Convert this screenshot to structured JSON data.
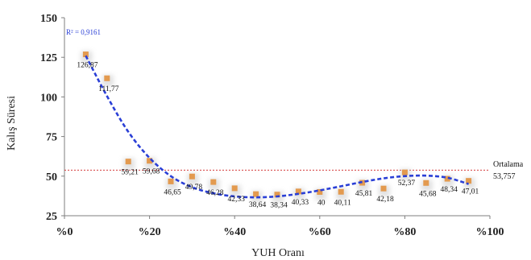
{
  "chart_data": {
    "type": "scatter",
    "xlabel": "YUH Oranı",
    "ylabel": "Kalış Süresi",
    "xlim": [
      0,
      100
    ],
    "ylim": [
      25,
      150
    ],
    "x_ticks": [
      "%0",
      "%20",
      "%40",
      "%60",
      "%80",
      "%100"
    ],
    "x_tick_values": [
      0,
      20,
      40,
      60,
      80,
      100
    ],
    "y_ticks": [
      "25",
      "50",
      "75",
      "100",
      "125",
      "150"
    ],
    "y_tick_values": [
      25,
      50,
      75,
      100,
      125,
      150
    ],
    "grid": false,
    "series": [
      {
        "x": [
          5,
          10,
          15,
          20,
          25,
          30,
          35,
          40,
          45,
          50,
          55,
          60,
          65,
          70,
          75,
          80,
          85,
          90,
          95
        ],
        "y": [
          126.87,
          111.77,
          59.21,
          59.68,
          46.65,
          49.78,
          46.28,
          42.33,
          38.64,
          38.34,
          40.33,
          40,
          40.11,
          45.81,
          42.18,
          52.37,
          45.68,
          48.34,
          47.01
        ],
        "labels": [
          "126,87",
          "111,77",
          "59,21",
          "59,68",
          "46,65",
          "49,78",
          "46,28",
          "42,33",
          "38,64",
          "38,34",
          "40,33",
          "40",
          "40,11",
          "45,81",
          "42,18",
          "52,37",
          "45,68",
          "48,34",
          "47,01"
        ],
        "color": "#e39a4f"
      }
    ],
    "trendline": {
      "r2_label": "R² = 0,9161",
      "color": "#2a3fd6",
      "x": [
        5,
        10,
        15,
        20,
        25,
        30,
        35,
        40,
        45,
        50,
        55,
        60,
        65,
        70,
        75,
        80,
        85,
        90,
        95
      ],
      "y": [
        126.0,
        100.5,
        78.0,
        61.5,
        50.0,
        43.0,
        39.2,
        37.2,
        36.6,
        37.2,
        38.8,
        41.0,
        43.6,
        46.3,
        48.6,
        50.0,
        50.3,
        49.0,
        45.0
      ]
    },
    "reference_line": {
      "y": 53.757,
      "label": "Ortalama",
      "value_label": "53,757",
      "color": "#d43a3a"
    }
  }
}
